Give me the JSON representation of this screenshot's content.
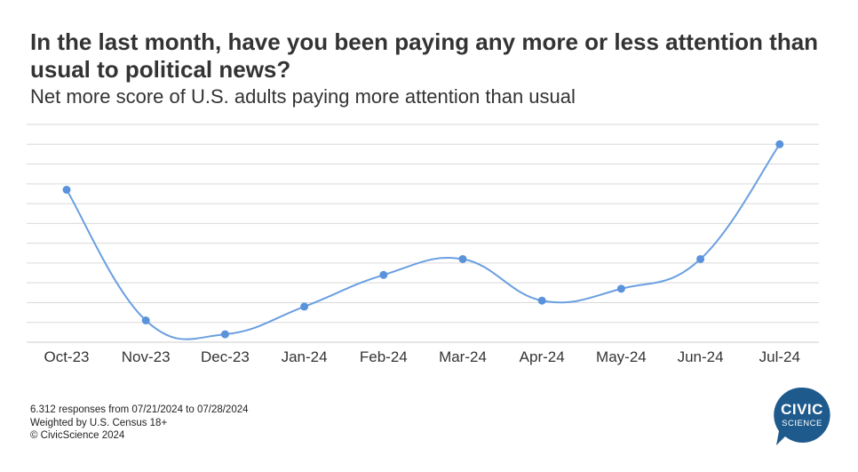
{
  "header": {
    "title": "In the last month, have you been paying any more or less attention than usual to political news?",
    "subtitle": "Net more score of U.S. adults paying more attention than usual"
  },
  "chart_data": {
    "type": "line",
    "categories": [
      "Oct-23",
      "Nov-23",
      "Dec-23",
      "Jan-24",
      "Feb-24",
      "Mar-24",
      "Apr-24",
      "May-24",
      "Jun-24",
      "Jul-24"
    ],
    "series": [
      {
        "values": [
          7.7,
          1.1,
          0.4,
          1.8,
          3.4,
          4.2,
          2.1,
          2.7,
          4.2,
          10.0
        ]
      }
    ],
    "ylim": [
      0,
      11
    ],
    "grid": true,
    "y_tick_labels_visible": false
  },
  "footer": {
    "line1": "6.312 responses from 07/21/2024 to 07/28/2024",
    "line2": "Weighted by U.S. Census 18+",
    "line3": "© CivicScience 2024"
  },
  "logo": {
    "word1": "CIVIC",
    "word2": "SCIENCE"
  },
  "colors": {
    "line": "#6a9fe0",
    "marker": "#5a93db",
    "grid": "#d9d9d9",
    "axis": "#cccccc",
    "logo_bg": "#1e5a8c"
  }
}
